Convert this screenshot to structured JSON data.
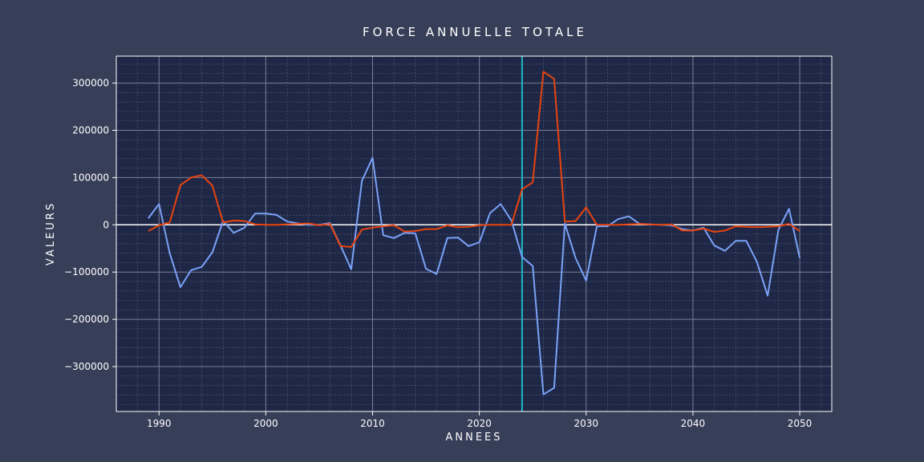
{
  "chart_data": {
    "type": "line",
    "title": "FORCE ANNUELLE TOTALE",
    "xlabel": "ANNEES",
    "ylabel": "VALEURS",
    "xlim": [
      1986,
      2053
    ],
    "ylim": [
      -395000,
      357000
    ],
    "x_ticks": [
      1990,
      2000,
      2010,
      2020,
      2030,
      2040,
      2050
    ],
    "y_ticks": [
      300000,
      200000,
      100000,
      0,
      -100000,
      -200000,
      -300000
    ],
    "y_tick_labels": [
      "300000",
      "200000",
      "100000",
      "0",
      "−100000",
      "−200000",
      "−300000"
    ],
    "grid": true,
    "vertical_marker_x": 2024,
    "colors": {
      "background": "#373e58",
      "plot_background": "#1f2747",
      "blue_series": "#7aa2f7",
      "orange_series": "#e8440f",
      "marker": "#1fb8c4",
      "zero_line": "#ffffff",
      "text": "#ffffff"
    },
    "x": [
      1989,
      1990,
      1991,
      1992,
      1993,
      1994,
      1995,
      1996,
      1997,
      1998,
      1999,
      2000,
      2001,
      2002,
      2003,
      2004,
      2005,
      2006,
      2007,
      2008,
      2009,
      2010,
      2011,
      2012,
      2013,
      2014,
      2015,
      2016,
      2017,
      2018,
      2019,
      2020,
      2021,
      2022,
      2023,
      2024,
      2025,
      2026,
      2027,
      2028,
      2029,
      2030,
      2031,
      2032,
      2033,
      2034,
      2035,
      2036,
      2037,
      2038,
      2039,
      2040,
      2041,
      2042,
      2043,
      2044,
      2045,
      2046,
      2047,
      2048,
      2049,
      2050
    ],
    "series": [
      {
        "color": "#7aa2f7",
        "values": [
          14000,
          44000,
          -60000,
          -132000,
          -96000,
          -89000,
          -58000,
          8000,
          -17000,
          -6000,
          24000,
          24000,
          21000,
          7000,
          3000,
          0,
          0,
          4000,
          -44000,
          -94000,
          93000,
          142000,
          -22000,
          -28000,
          -17000,
          -18000,
          -93000,
          -104000,
          -28000,
          -27000,
          -45000,
          -37000,
          25000,
          44000,
          9000,
          -68000,
          -87000,
          -359000,
          -345000,
          3000,
          -70000,
          -118000,
          -3000,
          -3000,
          12000,
          18000,
          2000,
          1000,
          0,
          -1000,
          -9000,
          -12000,
          -6000,
          -44000,
          -55000,
          -34000,
          -34000,
          -79000,
          -150000,
          -11000,
          34000,
          -70000
        ]
      },
      {
        "color": "#e8440f",
        "values": [
          -13000,
          -1000,
          5000,
          84000,
          100000,
          105000,
          83000,
          5000,
          9000,
          8000,
          1000,
          0,
          0,
          1000,
          2000,
          3000,
          -1000,
          2000,
          -45000,
          -47000,
          -10000,
          -6000,
          -3000,
          -1000,
          -14000,
          -13000,
          -9000,
          -9000,
          -1000,
          -5000,
          -4000,
          -1000,
          0,
          0,
          0,
          75000,
          90000,
          324000,
          309000,
          7000,
          8000,
          37000,
          0,
          0,
          0,
          1000,
          2000,
          1000,
          0,
          1000,
          -12000,
          -12000,
          -8000,
          -15000,
          -12000,
          -3000,
          -4000,
          -5000,
          -4000,
          -3000,
          2000,
          -13000
        ]
      }
    ]
  }
}
